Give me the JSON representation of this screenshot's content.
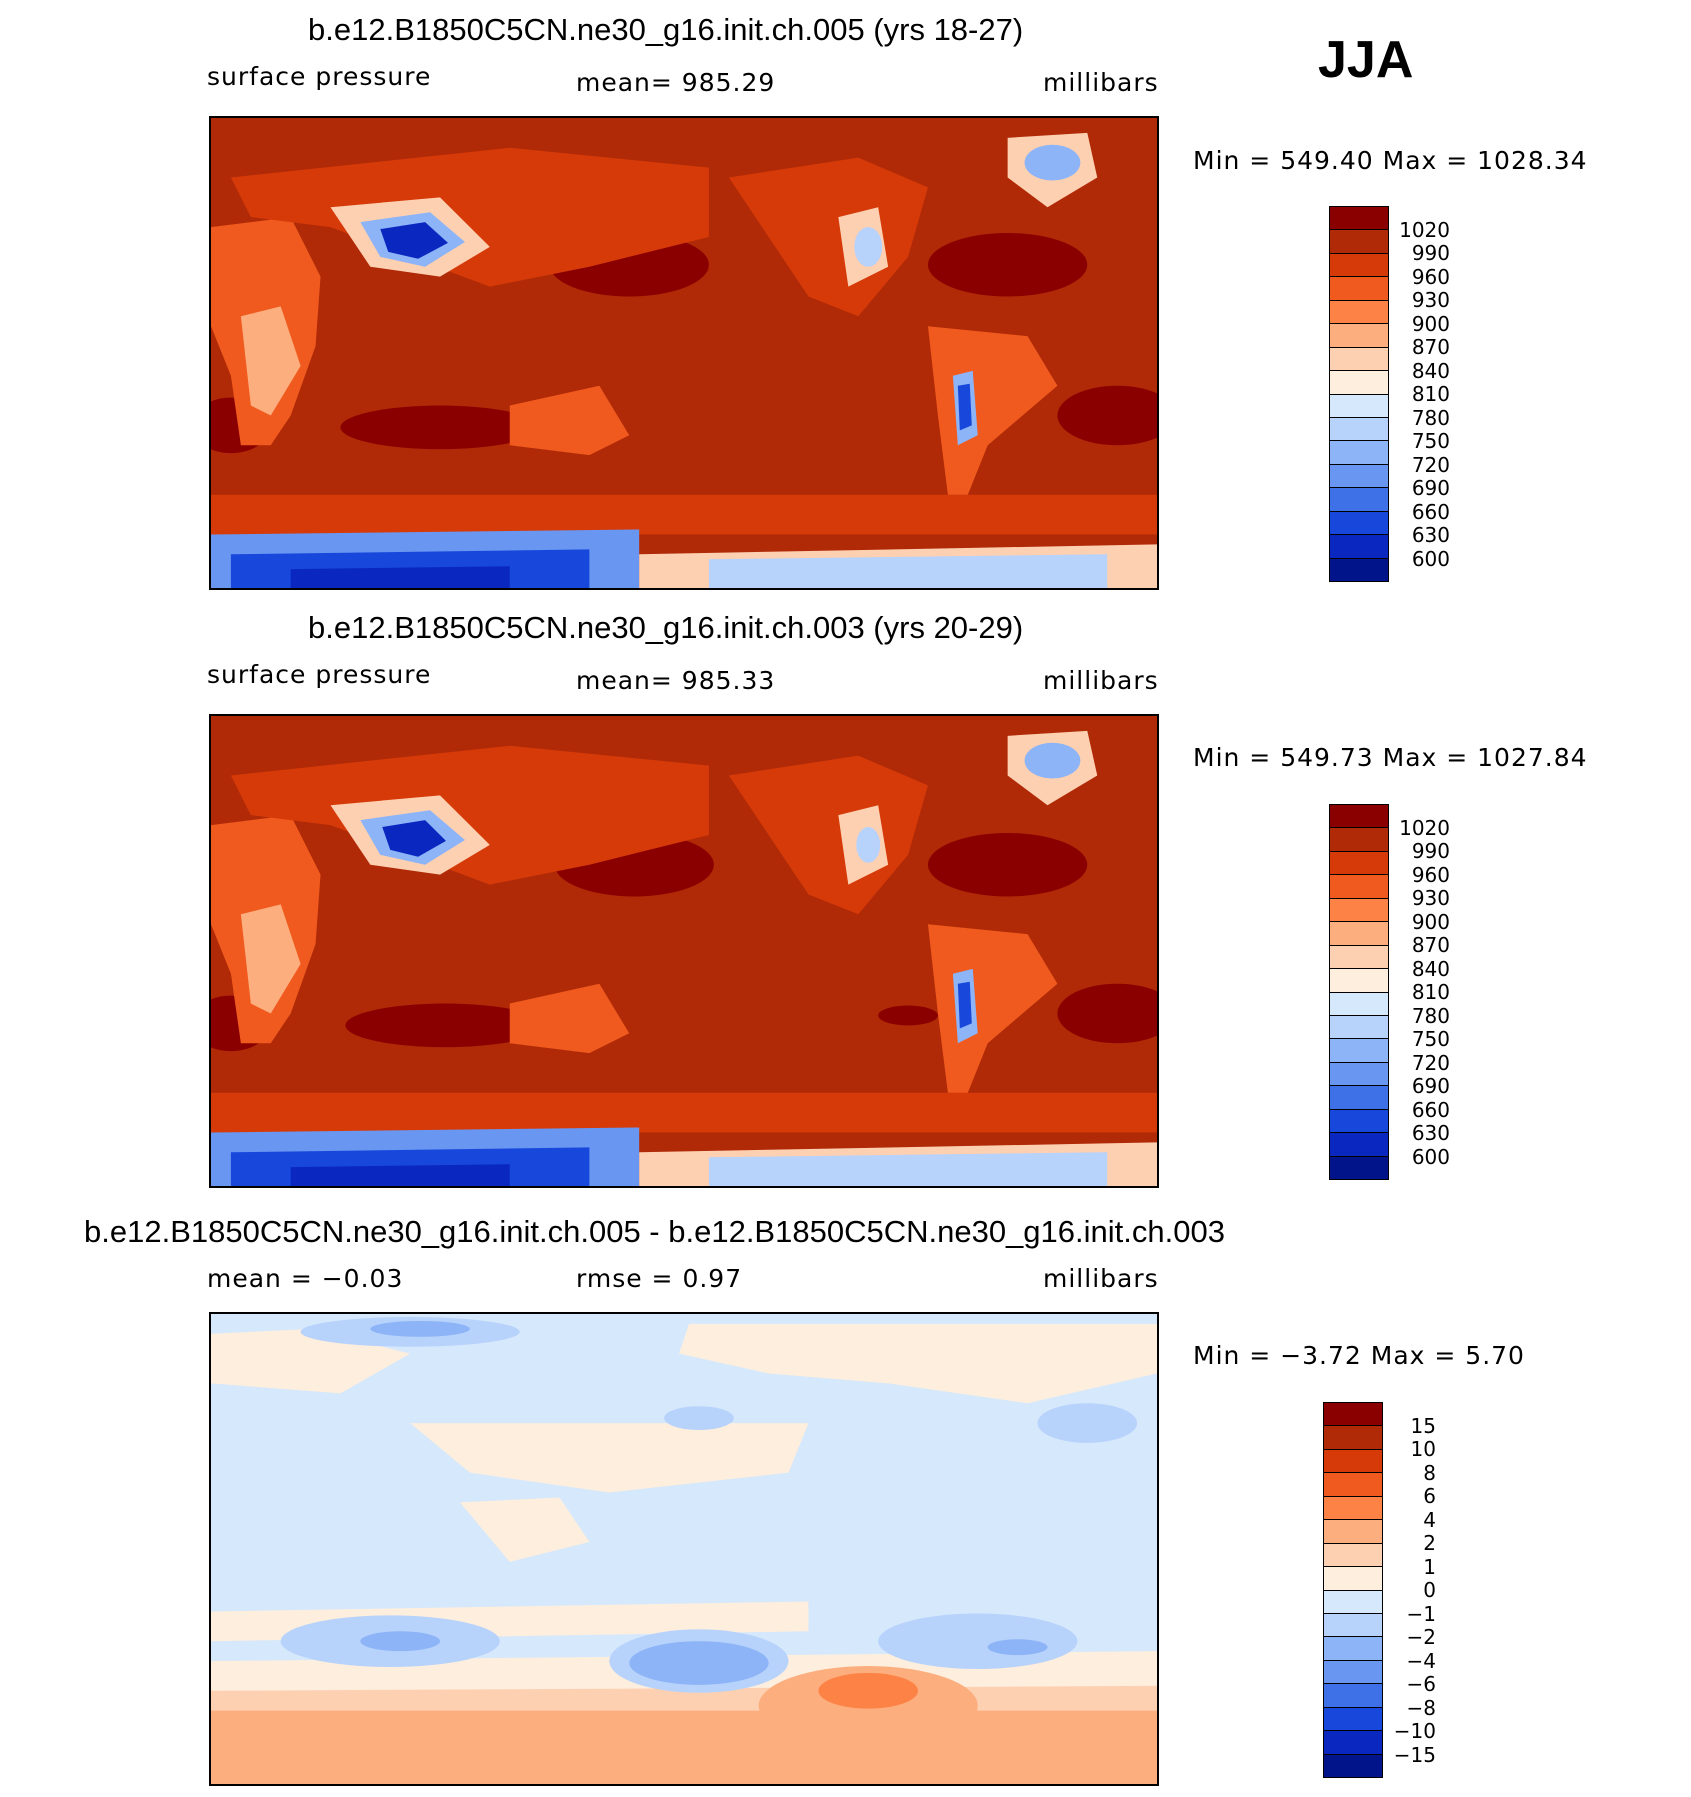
{
  "season": "JJA",
  "panels": [
    {
      "title": "b.e12.B1850C5CN.ne30_g16.init.ch.005 (yrs 18-27)",
      "left_label": "surface pressure",
      "center_label": "mean= 985.29",
      "units": "millibars",
      "minmax": "Min = 549.40 Max = 1028.34"
    },
    {
      "title": "b.e12.B1850C5CN.ne30_g16.init.ch.003 (yrs 20-29)",
      "left_label": "surface pressure",
      "center_label": "mean= 985.33",
      "units": "millibars",
      "minmax": "Min = 549.73 Max = 1027.84"
    },
    {
      "title": "b.e12.B1850C5CN.ne30_g16.init.ch.005 - b.e12.B1850C5CN.ne30_g16.init.ch.003",
      "left_label": "mean = −0.03",
      "center_label": "rmse = 0.97",
      "units": "millibars",
      "minmax": "Min = −3.72 Max = 5.70"
    }
  ],
  "colorbar_abs": {
    "labels": [
      "1020",
      "990",
      "960",
      "930",
      "900",
      "870",
      "840",
      "810",
      "780",
      "750",
      "720",
      "690",
      "660",
      "630",
      "600"
    ],
    "colors": [
      "#8a0000",
      "#b02a07",
      "#d63a08",
      "#f05a1e",
      "#fc8246",
      "#fdae7e",
      "#fdd0b2",
      "#fdeede",
      "#d6e8fb",
      "#b7d2fb",
      "#8cb4f7",
      "#6996f0",
      "#3e70e8",
      "#1848db",
      "#0a28c0",
      "#01148a"
    ]
  },
  "colorbar_diff": {
    "labels": [
      "15",
      "10",
      "8",
      "6",
      "4",
      "2",
      "1",
      "0",
      "−1",
      "−2",
      "−4",
      "−6",
      "−8",
      "−10",
      "−15"
    ],
    "colors": [
      "#8a0000",
      "#b02a07",
      "#d63a08",
      "#f05a1e",
      "#fc8246",
      "#fdae7e",
      "#fdd0b2",
      "#fdeede",
      "#d6e8fb",
      "#b7d2fb",
      "#8cb4f7",
      "#6996f0",
      "#3e70e8",
      "#1848db",
      "#0a28c0",
      "#01148a"
    ]
  }
}
